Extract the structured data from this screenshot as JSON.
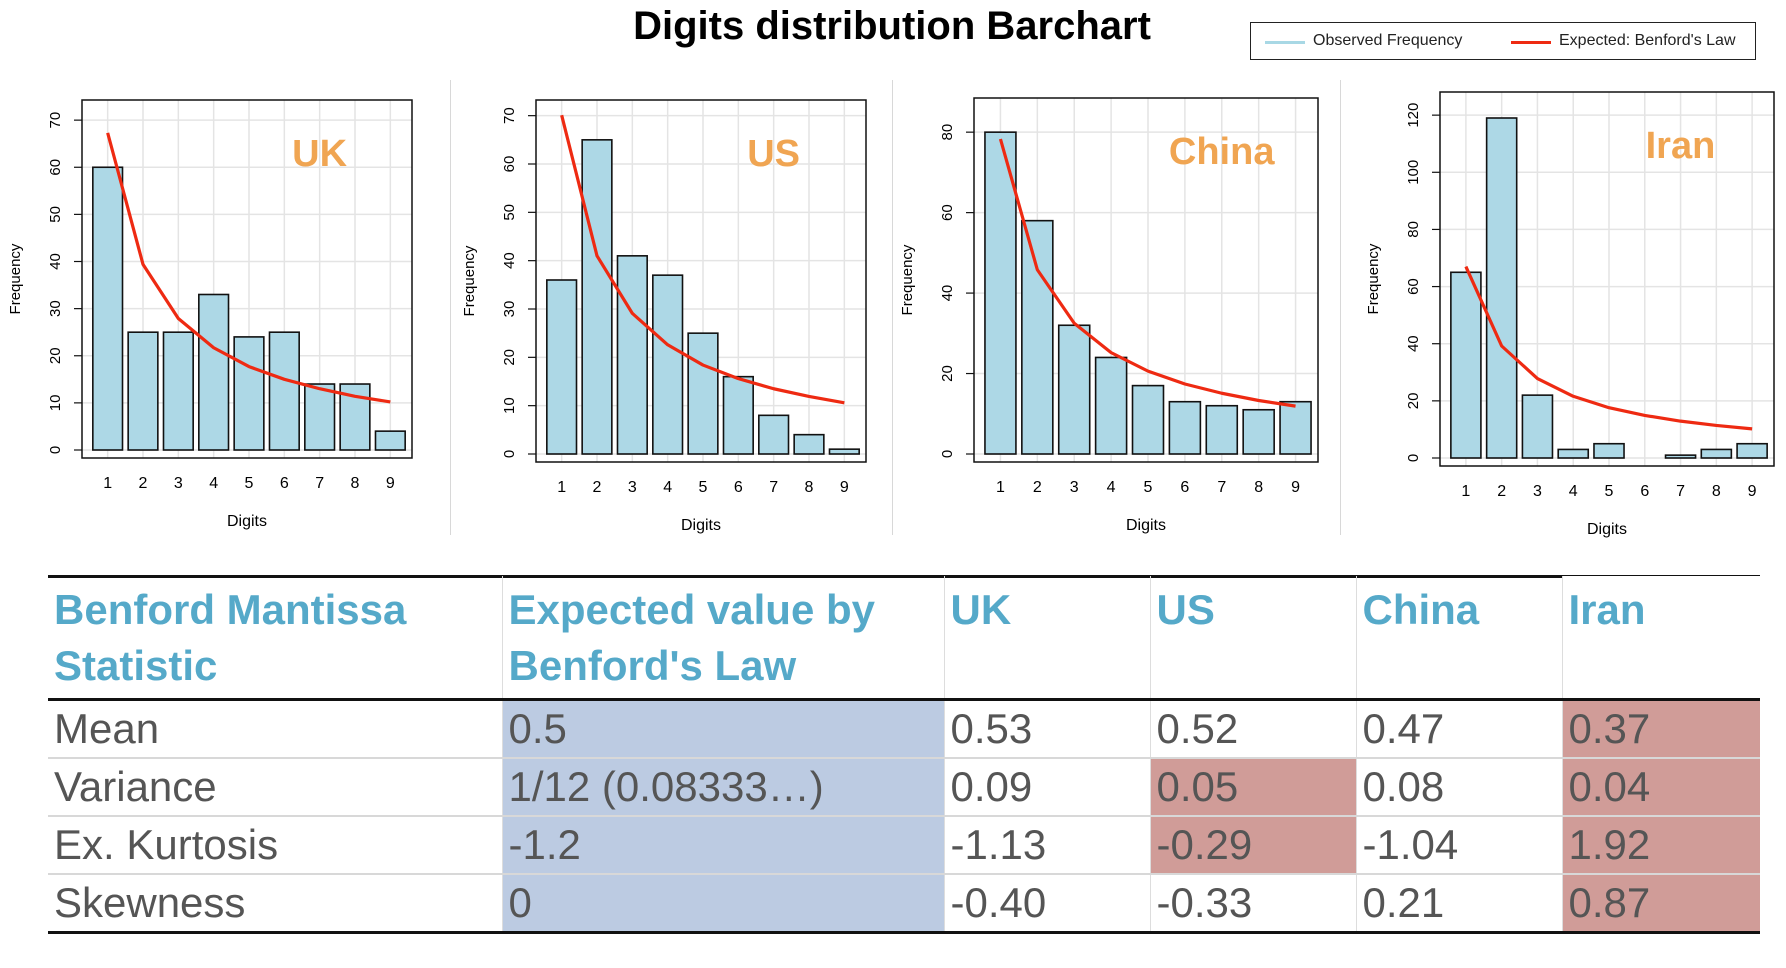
{
  "title": "Digits distribution Barchart",
  "legend": {
    "observed": "Observed Frequency",
    "expected": "Expected: Benford's Law",
    "observed_color": "#a8d8e5",
    "expected_color": "#ee2a12"
  },
  "colors": {
    "bar_fill": "#add8e6",
    "bar_stroke": "#111111",
    "curve": "#ee2a12",
    "country_label": "#f0a552",
    "header_text": "#55a9c9",
    "highlight_blue": "#bccbe2",
    "highlight_red": "#d09c98"
  },
  "chart_data": [
    {
      "type": "bar",
      "title": "UK",
      "xlabel": "Digits",
      "ylabel": "Frequency",
      "categories": [
        "1",
        "2",
        "3",
        "4",
        "5",
        "6",
        "7",
        "8",
        "9"
      ],
      "yticks": [
        0,
        10,
        20,
        30,
        40,
        50,
        60,
        70
      ],
      "ylim": [
        0,
        73
      ],
      "grid": true,
      "series": [
        {
          "name": "Observed Frequency",
          "kind": "bar",
          "values": [
            60,
            25,
            25,
            33,
            24,
            25,
            14,
            14,
            4
          ]
        },
        {
          "name": "Expected: Benford's Law",
          "kind": "line",
          "values": [
            67.3,
            39.4,
            27.9,
            21.7,
            17.7,
            15.0,
            13.0,
            11.4,
            10.2
          ]
        }
      ]
    },
    {
      "type": "bar",
      "title": "US",
      "xlabel": "Digits",
      "ylabel": "Frequency",
      "categories": [
        "1",
        "2",
        "3",
        "4",
        "5",
        "6",
        "7",
        "8",
        "9"
      ],
      "yticks": [
        0,
        10,
        20,
        30,
        40,
        50,
        60,
        70
      ],
      "ylim": [
        0,
        72
      ],
      "grid": true,
      "series": [
        {
          "name": "Observed Frequency",
          "kind": "bar",
          "values": [
            36,
            65,
            41,
            37,
            25,
            16,
            8,
            4,
            1
          ]
        },
        {
          "name": "Expected: Benford's Law",
          "kind": "line",
          "values": [
            70.1,
            41.0,
            29.1,
            22.6,
            18.4,
            15.6,
            13.5,
            11.9,
            10.6
          ]
        }
      ]
    },
    {
      "type": "bar",
      "title": "China",
      "xlabel": "Digits",
      "ylabel": "Frequency",
      "categories": [
        "1",
        "2",
        "3",
        "4",
        "5",
        "6",
        "7",
        "8",
        "9"
      ],
      "yticks": [
        0,
        20,
        40,
        60,
        80
      ],
      "ylim": [
        0,
        87
      ],
      "grid": true,
      "series": [
        {
          "name": "Observed Frequency",
          "kind": "bar",
          "values": [
            80,
            58,
            32,
            24,
            17,
            13,
            12,
            11,
            13
          ]
        },
        {
          "name": "Expected: Benford's Law",
          "kind": "line",
          "values": [
            78.3,
            45.8,
            32.5,
            25.2,
            20.6,
            17.4,
            15.1,
            13.3,
            11.9
          ]
        }
      ]
    },
    {
      "type": "bar",
      "title": "Iran",
      "xlabel": "Digits",
      "ylabel": "Frequency",
      "categories": [
        "1",
        "2",
        "3",
        "4",
        "5",
        "6",
        "7",
        "8",
        "9"
      ],
      "yticks": [
        0,
        20,
        40,
        60,
        80,
        100,
        120
      ],
      "ylim": [
        0,
        126
      ],
      "grid": true,
      "series": [
        {
          "name": "Observed Frequency",
          "kind": "bar",
          "values": [
            65,
            119,
            22,
            3,
            5,
            0,
            1,
            3,
            5
          ]
        },
        {
          "name": "Expected: Benford's Law",
          "kind": "line",
          "values": [
            67.0,
            39.2,
            27.8,
            21.6,
            17.6,
            14.9,
            12.9,
            11.4,
            10.2
          ]
        }
      ]
    }
  ],
  "table": {
    "headers": [
      "Benford Mantissa Statistic",
      "Expected value by Benford's Law",
      "UK",
      "US",
      "China",
      "Iran"
    ],
    "rows": [
      {
        "label": "Mean",
        "expected": "0.5",
        "uk": "0.53",
        "us": "0.52",
        "china": "0.47",
        "iran": "0.37"
      },
      {
        "label": "Variance",
        "expected": "1/12 (0.08333…)",
        "uk": "0.09",
        "us": "0.05",
        "china": "0.08",
        "iran": "0.04"
      },
      {
        "label": "Ex. Kurtosis",
        "expected": "-1.2",
        "uk": "-1.13",
        "us": "-0.29",
        "china": "-1.04",
        "iran": "1.92"
      },
      {
        "label": "Skewness",
        "expected": "0",
        "uk": "-0.40",
        "us": "-0.33",
        "china": "0.21",
        "iran": "0.87"
      }
    ]
  }
}
